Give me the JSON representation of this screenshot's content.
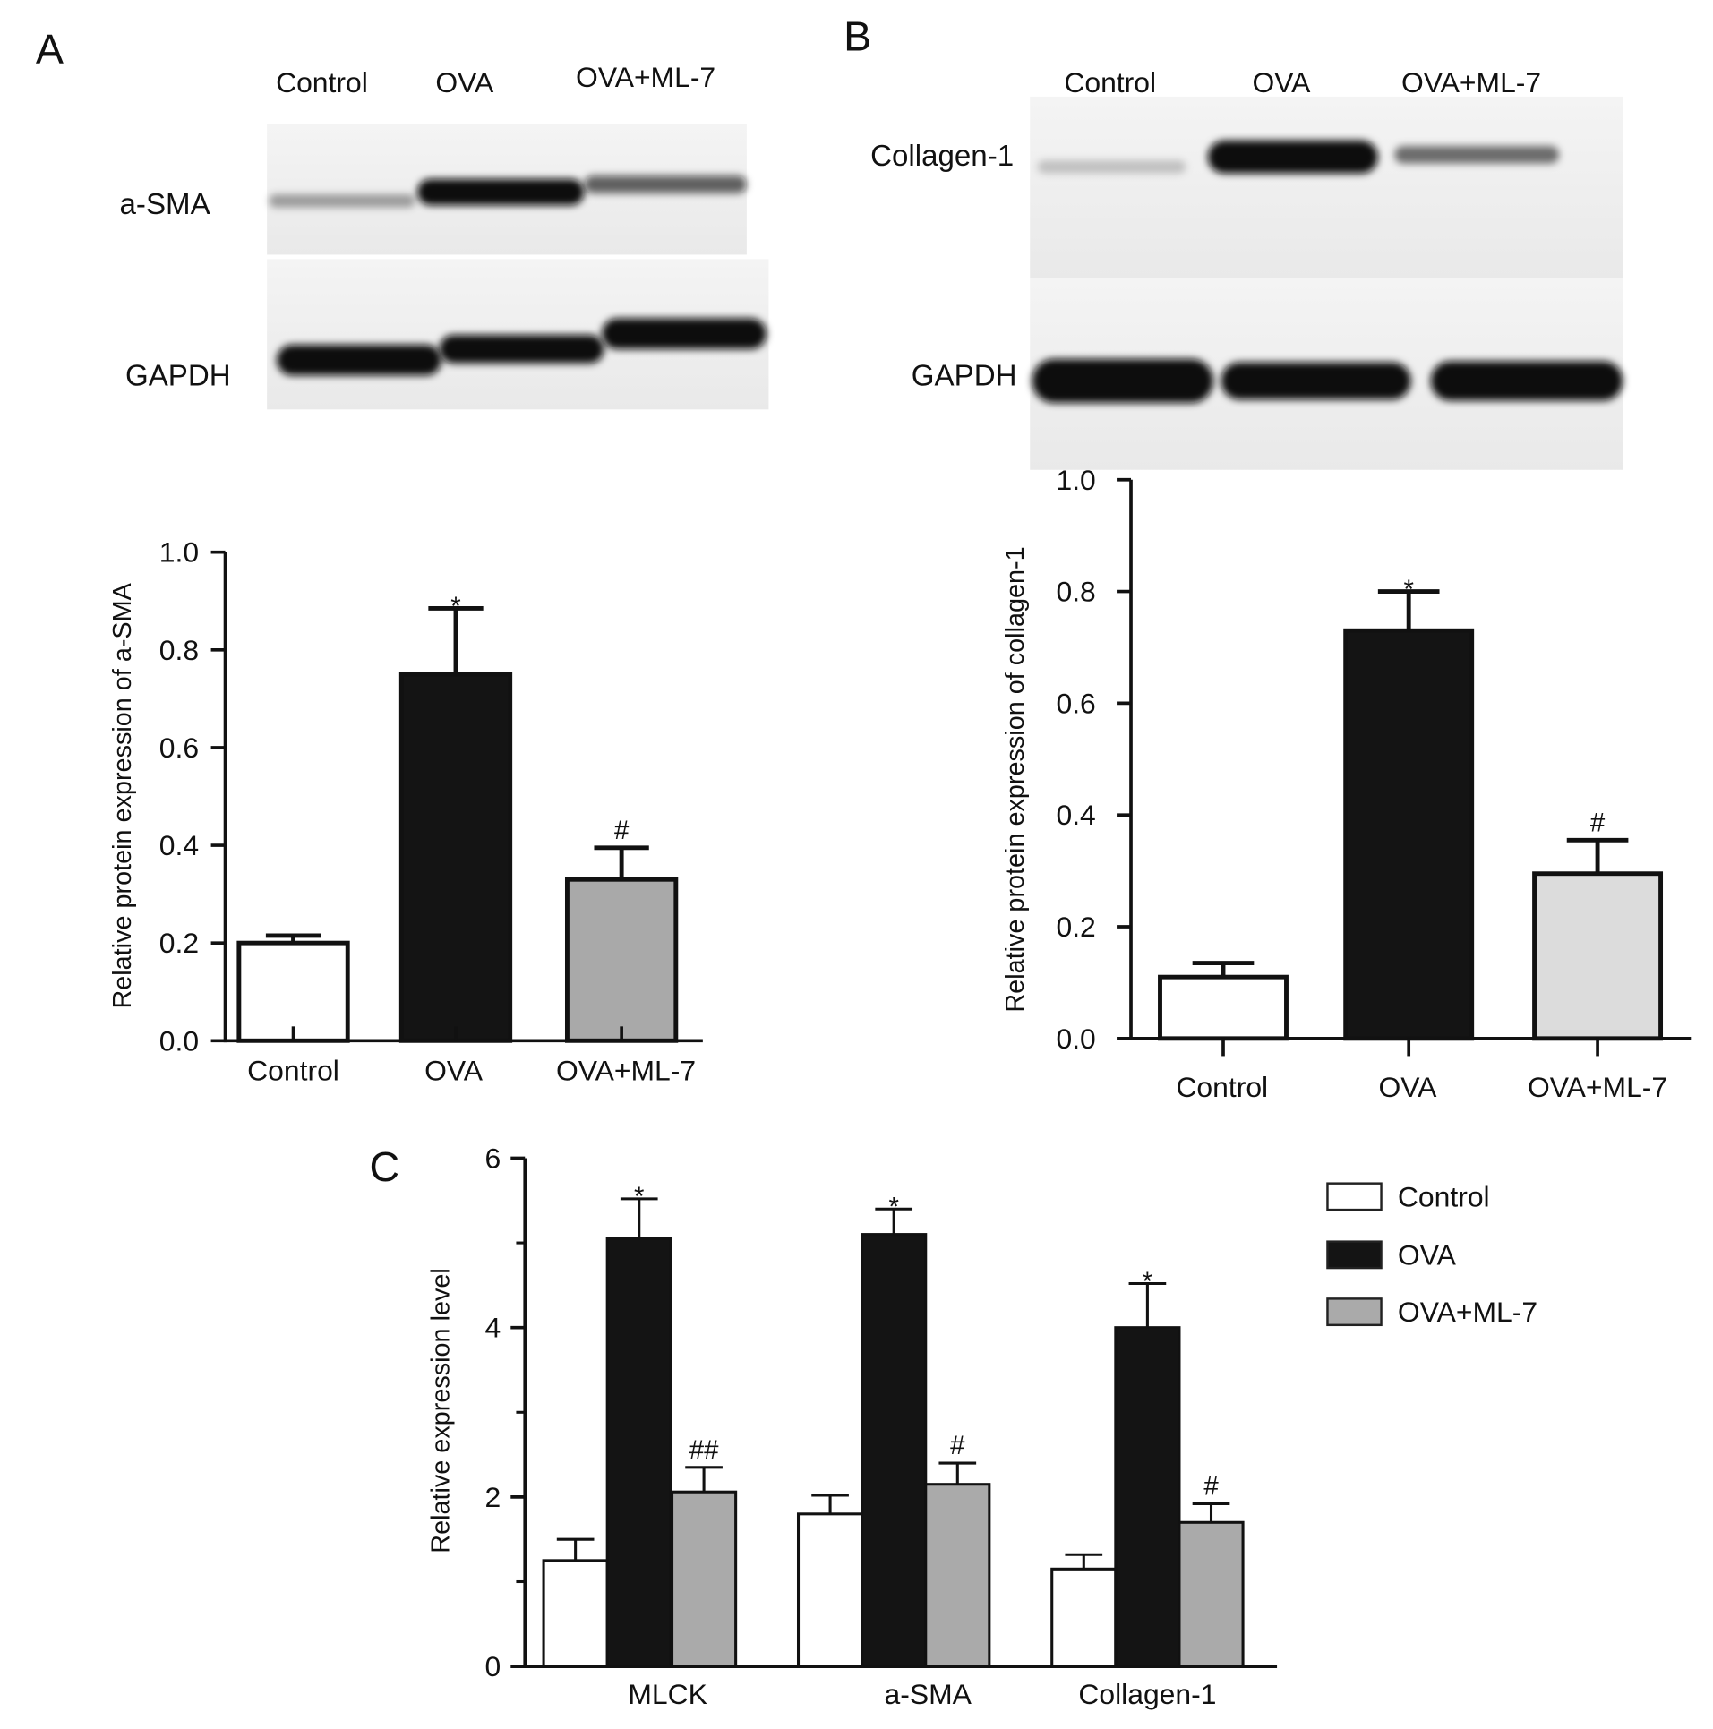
{
  "panel_labels": {
    "a": "A",
    "b": "B",
    "c": "C"
  },
  "blots": [
    {
      "lanes": [
        "Control",
        "OVA",
        "OVA+ML-7"
      ],
      "rows": [
        {
          "label": "a-SMA",
          "band_intensity": [
            0.35,
            1.0,
            0.65
          ]
        },
        {
          "label": "GAPDH",
          "band_intensity": [
            1.0,
            1.0,
            1.0
          ]
        }
      ]
    },
    {
      "lanes": [
        "Control",
        "OVA",
        "OVA+ML-7"
      ],
      "rows": [
        {
          "label": "Collagen-1",
          "band_intensity": [
            0.2,
            1.0,
            0.55
          ]
        },
        {
          "label": "GAPDH",
          "band_intensity": [
            1.0,
            1.0,
            1.0
          ]
        }
      ]
    }
  ],
  "chart_data": [
    {
      "type": "bar",
      "ylabel": "Relative protein expression of a-SMA",
      "categories": [
        "Control",
        "OVA",
        "OVA+ML-7"
      ],
      "values": [
        0.2,
        0.75,
        0.33
      ],
      "error_top": [
        0.215,
        0.885,
        0.395
      ],
      "annotations": [
        "",
        "*",
        "#"
      ],
      "bar_colors": [
        "#ffffff",
        "#141414",
        "#a9a9a9"
      ],
      "ylim": [
        0,
        1.0
      ],
      "yticks": [
        0,
        0.2,
        0.4,
        0.6,
        0.8,
        1.0
      ],
      "ytick_labels": [
        "0.0",
        "0.2",
        "0.4",
        "0.6",
        "0.8",
        "1.0"
      ],
      "grid": false
    },
    {
      "type": "bar",
      "ylabel": "Relative protein expression of collagen-1",
      "categories": [
        "Control",
        "OVA",
        "OVA+ML-7"
      ],
      "values": [
        0.11,
        0.73,
        0.295
      ],
      "error_top": [
        0.135,
        0.8,
        0.355
      ],
      "annotations": [
        "",
        "*",
        "#"
      ],
      "bar_colors": [
        "#ffffff",
        "#141414",
        "#dcdcdc"
      ],
      "ylim": [
        0,
        1.0
      ],
      "yticks": [
        0,
        0.2,
        0.4,
        0.6,
        0.8,
        1.0
      ],
      "ytick_labels": [
        "0.0",
        "0.2",
        "0.4",
        "0.6",
        "0.8",
        "1.0"
      ],
      "grid": false
    },
    {
      "type": "bar",
      "ylabel": "Relative expression level",
      "categories": [
        "MLCK",
        "a-SMA",
        "Collagen-1"
      ],
      "series": [
        {
          "name": "Control",
          "color": "#ffffff",
          "values": [
            1.25,
            1.8,
            1.15
          ],
          "error_top": [
            1.5,
            2.02,
            1.32
          ],
          "annotations": [
            "",
            "",
            ""
          ]
        },
        {
          "name": "OVA",
          "color": "#141414",
          "values": [
            5.05,
            5.1,
            4.0
          ],
          "error_top": [
            5.52,
            5.4,
            4.52
          ],
          "annotations": [
            "*",
            "*",
            "*"
          ]
        },
        {
          "name": "OVA+ML-7",
          "color": "#aaaaaa",
          "values": [
            2.06,
            2.15,
            1.7
          ],
          "error_top": [
            2.35,
            2.4,
            1.92
          ],
          "annotations": [
            "##",
            "#",
            "#"
          ]
        }
      ],
      "ylim": [
        0,
        6
      ],
      "yticks": [
        0,
        2,
        4,
        6
      ],
      "ytick_labels": [
        "0",
        "2",
        "4",
        "6"
      ],
      "grid": false,
      "legend": "top-right"
    }
  ]
}
